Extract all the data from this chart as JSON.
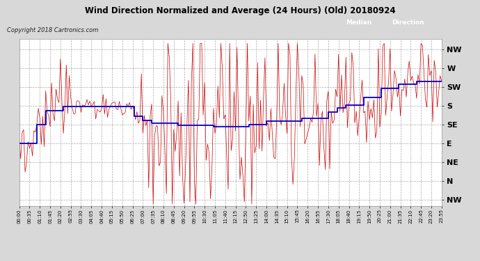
{
  "title": "Wind Direction Normalized and Average (24 Hours) (Old) 20180924",
  "copyright": "Copyright 2018 Cartronics.com",
  "ytick_labels": [
    "NW",
    "W",
    "SW",
    "S",
    "SE",
    "E",
    "NE",
    "N",
    "NW"
  ],
  "ytick_values": [
    315,
    270,
    225,
    180,
    135,
    90,
    45,
    0,
    -45
  ],
  "ymin": -60,
  "ymax": 340,
  "bg_color": "#d8d8d8",
  "plot_bg": "#ffffff",
  "grid_color": "#aaaaaa",
  "line_color_direction": "#cc0000",
  "line_color_median": "#0000cc",
  "median_legend_bg": "#0000aa",
  "direction_legend_bg": "#cc0000"
}
